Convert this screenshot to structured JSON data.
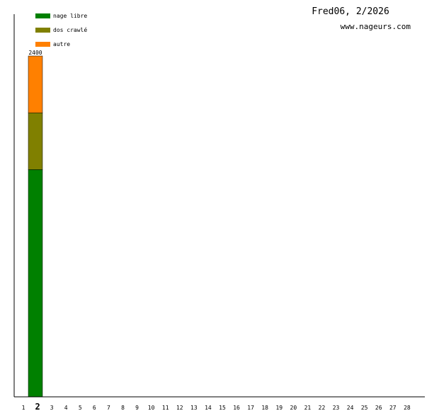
{
  "title": "Fred06, 2/2026",
  "site": "www.nageurs.com",
  "chart_data": {
    "type": "bar",
    "stacked": true,
    "categories": [
      "1",
      "2",
      "3",
      "4",
      "5",
      "6",
      "7",
      "8",
      "9",
      "10",
      "11",
      "12",
      "13",
      "14",
      "15",
      "16",
      "17",
      "18",
      "19",
      "20",
      "21",
      "22",
      "23",
      "24",
      "25",
      "26",
      "27",
      "28"
    ],
    "highlighted_category": "2",
    "series": [
      {
        "name": "nage libre",
        "color": "#008000",
        "values": [
          0,
          1600,
          0,
          0,
          0,
          0,
          0,
          0,
          0,
          0,
          0,
          0,
          0,
          0,
          0,
          0,
          0,
          0,
          0,
          0,
          0,
          0,
          0,
          0,
          0,
          0,
          0,
          0
        ]
      },
      {
        "name": "dos crawlé",
        "color": "#808000",
        "values": [
          0,
          400,
          0,
          0,
          0,
          0,
          0,
          0,
          0,
          0,
          0,
          0,
          0,
          0,
          0,
          0,
          0,
          0,
          0,
          0,
          0,
          0,
          0,
          0,
          0,
          0,
          0,
          0
        ]
      },
      {
        "name": "autre",
        "color": "#ff8000",
        "values": [
          0,
          400,
          0,
          0,
          0,
          0,
          0,
          0,
          0,
          0,
          0,
          0,
          0,
          0,
          0,
          0,
          0,
          0,
          0,
          0,
          0,
          0,
          0,
          0,
          0,
          0,
          0,
          0
        ]
      }
    ],
    "data_labels": [
      {
        "category": "2",
        "text": "2400"
      }
    ],
    "ylim": [
      0,
      2400
    ],
    "legend": "top-left",
    "grid": false
  }
}
